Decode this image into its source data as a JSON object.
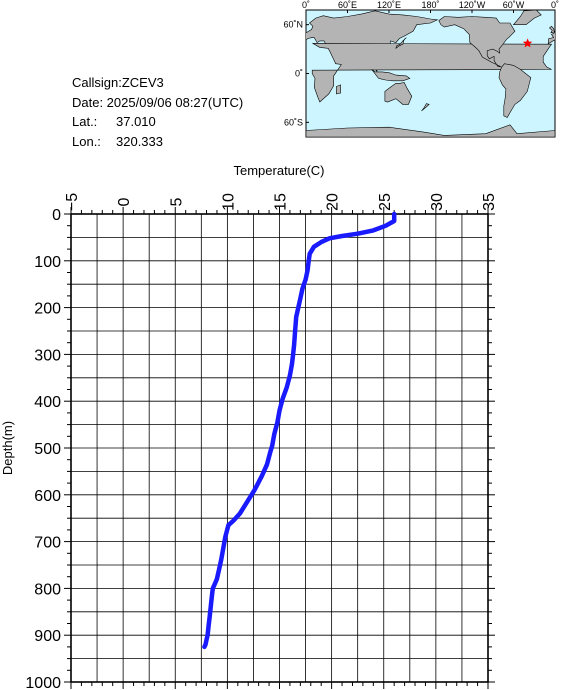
{
  "info": {
    "callsign": "Callsign:ZCEV3",
    "date": "Date:  2025/09/06 08:27(UTC)",
    "lat_label": "Lat.:",
    "lat_value": "37.010",
    "lon_label": "Lon.:",
    "lon_value": "320.333"
  },
  "map": {
    "lon_ticks": [
      "0˚",
      "60˚E",
      "120˚E",
      "180˚",
      "120˚W",
      "60˚W",
      "0˚"
    ],
    "lat_ticks": [
      "60˚N",
      "0˚",
      "60˚S"
    ],
    "ocean_color": "#ccf5ff",
    "land_color": "#b4b4b4",
    "marker_color": "#ff0000",
    "marker_icon": "star-icon"
  },
  "chart_data": {
    "type": "line",
    "xlabel": "Temperature(C)",
    "ylabel": "Depth(m)",
    "xlim": [
      -5,
      35
    ],
    "ylim": [
      1000,
      0
    ],
    "x_ticks": [
      "−5",
      "0",
      "5",
      "10",
      "15",
      "20",
      "25",
      "30",
      "35"
    ],
    "y_ticks": [
      "0",
      "100",
      "200",
      "300",
      "400",
      "500",
      "600",
      "700",
      "800",
      "900",
      "1000"
    ],
    "grid": true,
    "line_color": "#1a1aff",
    "series": [
      {
        "x": [
          26.0,
          26.0,
          25.2,
          24.0,
          22.5,
          21.0,
          19.8,
          19.0,
          18.3,
          17.9,
          17.8,
          17.7,
          17.5,
          17.2,
          17.0,
          16.8,
          16.6,
          16.5,
          16.4,
          16.3,
          16.2,
          16.0,
          15.7,
          15.3,
          15.0,
          14.8,
          14.5,
          14.3,
          14.1,
          13.8,
          13.3,
          12.6,
          11.9,
          11.2,
          10.6,
          10.1,
          9.8,
          9.6,
          9.4,
          9.2,
          9.0,
          8.8,
          8.6,
          8.5,
          8.4,
          8.3,
          8.2,
          8.1,
          8.0,
          7.9,
          7.8
        ],
        "y": [
          0,
          15,
          25,
          35,
          42,
          47,
          52,
          60,
          70,
          85,
          100,
          120,
          140,
          160,
          180,
          200,
          220,
          250,
          280,
          300,
          320,
          345,
          370,
          395,
          420,
          445,
          470,
          495,
          510,
          535,
          560,
          590,
          615,
          640,
          655,
          665,
          690,
          715,
          740,
          760,
          780,
          790,
          800,
          820,
          840,
          860,
          880,
          900,
          910,
          920,
          925
        ]
      }
    ]
  },
  "station": {
    "lon": 320.333,
    "lat": 37.01
  }
}
